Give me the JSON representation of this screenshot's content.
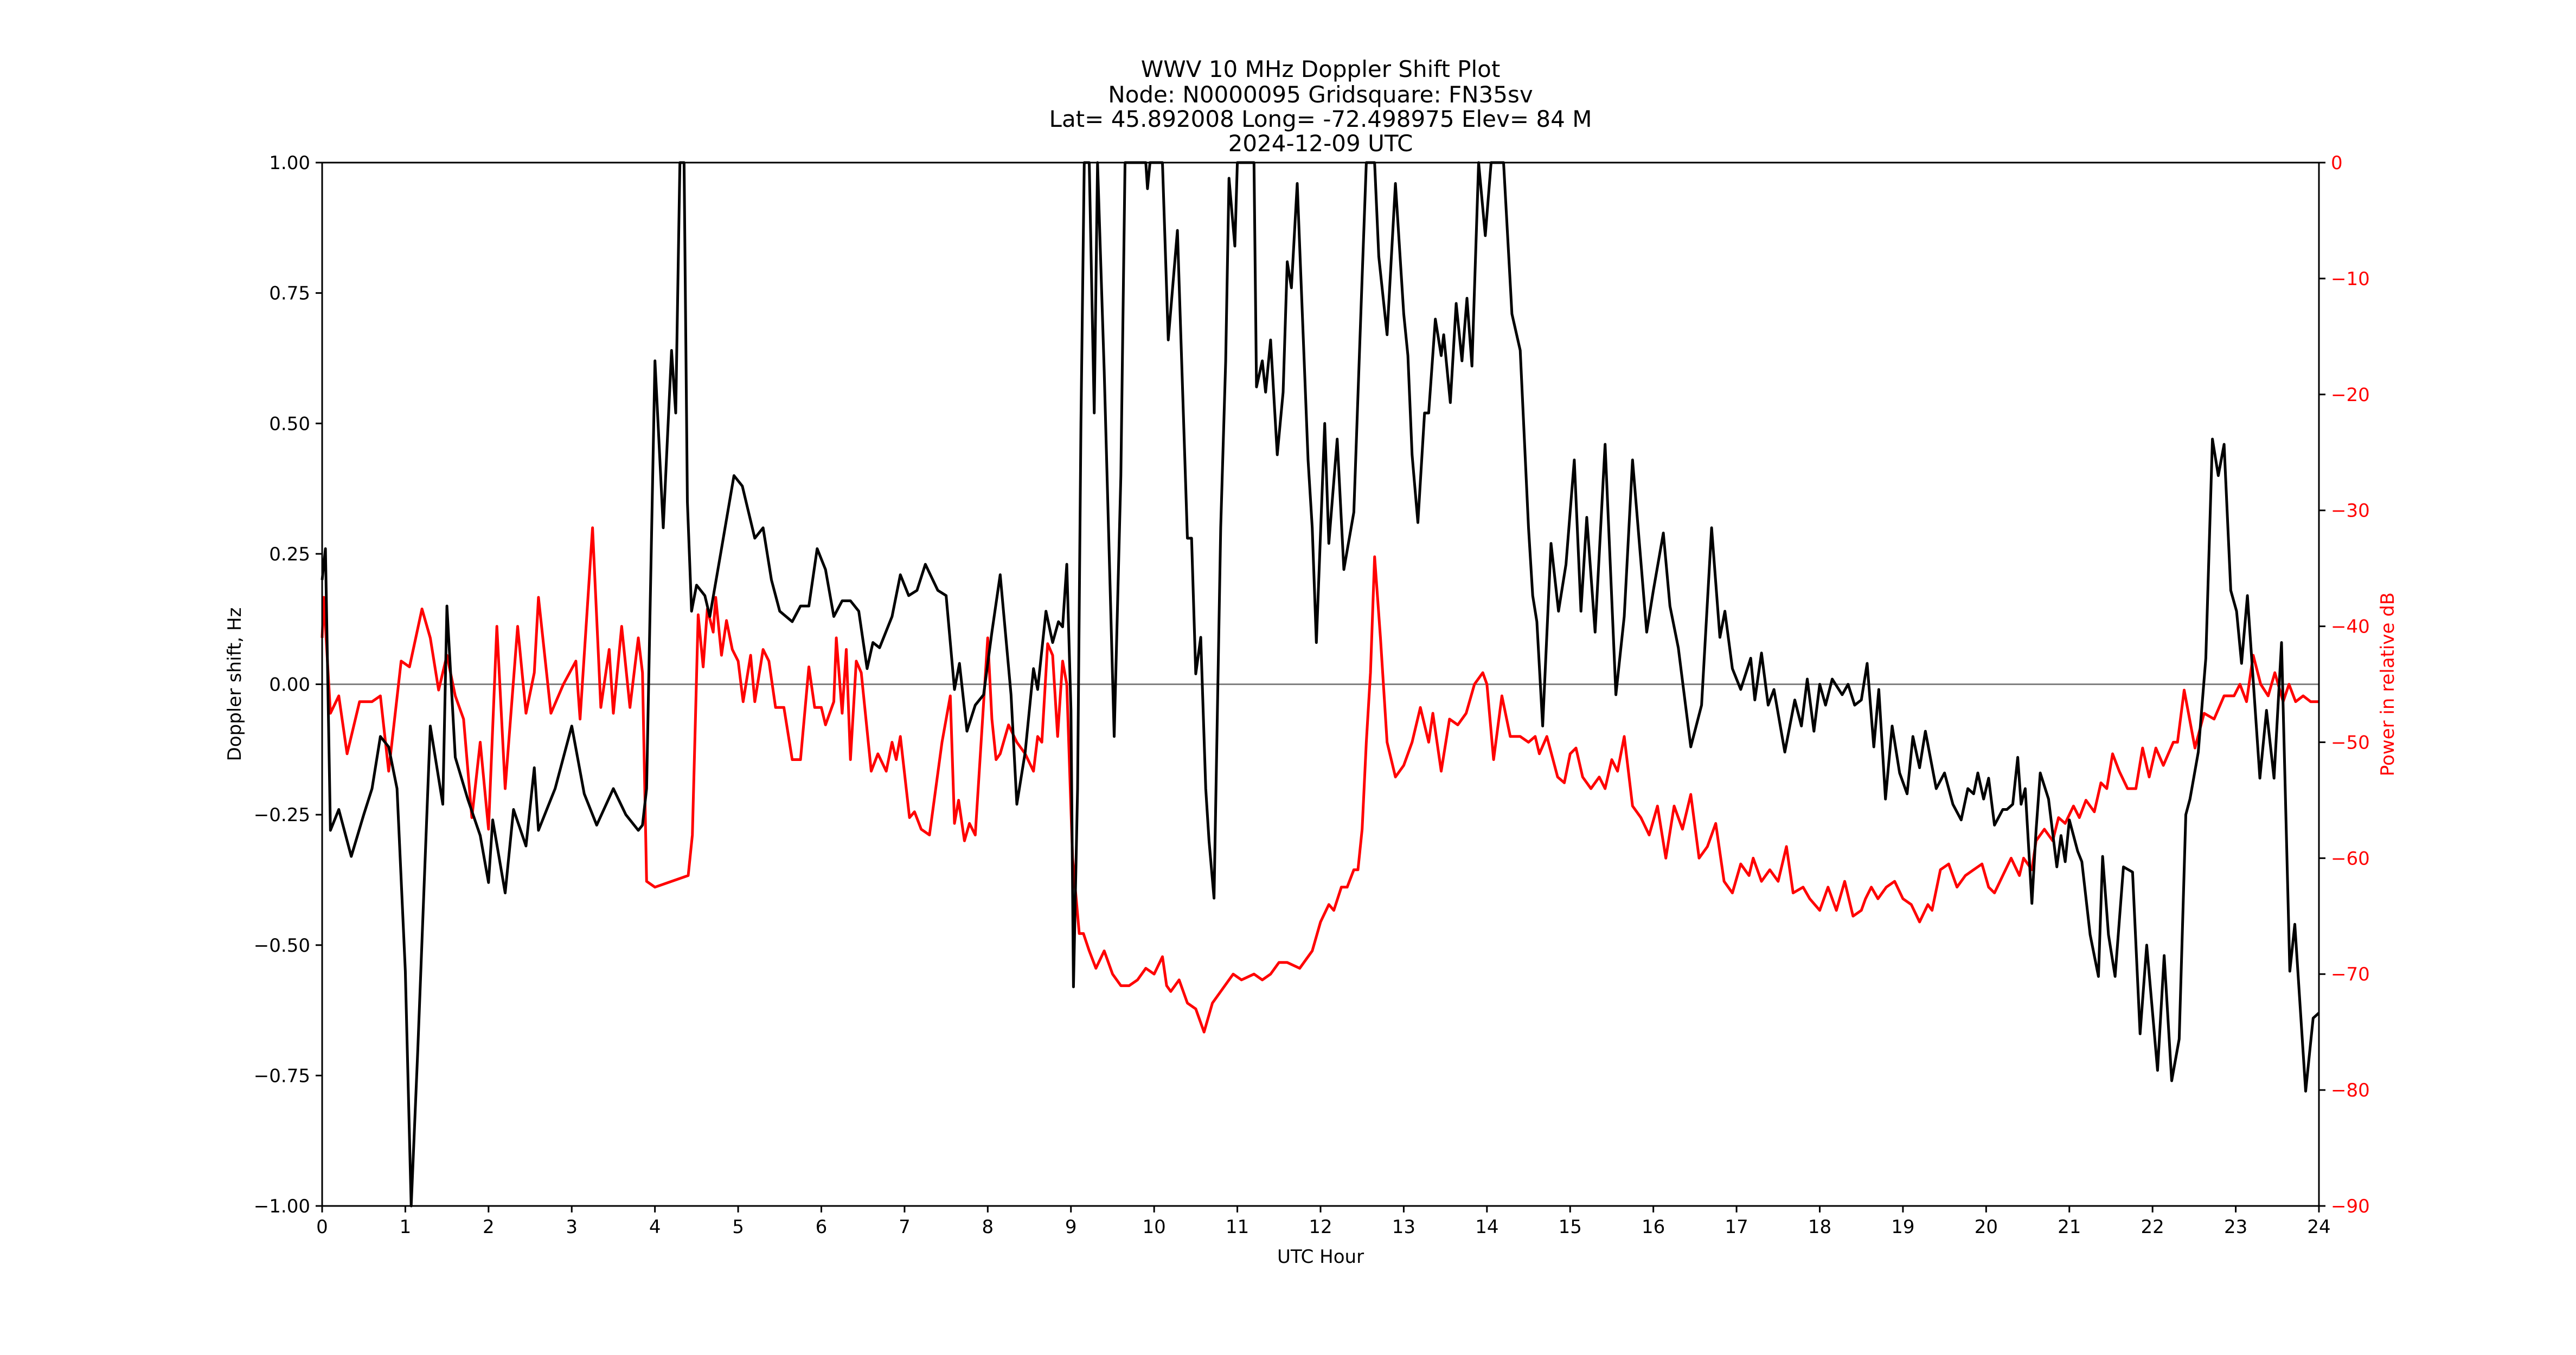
{
  "figure": {
    "title_lines": [
      "WWV 10 MHz Doppler Shift Plot",
      "Node:  N0000095     Gridsquare:  FN35sv",
      "Lat= 45.892008    Long= -72.498975    Elev= 84 M",
      "2024-12-09  UTC"
    ],
    "xlabel": "UTC Hour",
    "ylabel_left": "Doppler shift, Hz",
    "ylabel_right": "Power in relative dB",
    "x_ticks": [
      "0",
      "1",
      "2",
      "3",
      "4",
      "5",
      "6",
      "7",
      "8",
      "9",
      "10",
      "11",
      "12",
      "13",
      "14",
      "15",
      "16",
      "17",
      "18",
      "19",
      "20",
      "21",
      "22",
      "23",
      "24"
    ],
    "y_left_ticks": [
      "1.00",
      "0.75",
      "0.50",
      "0.25",
      "0.00",
      "−0.25",
      "−0.50",
      "−0.75",
      "−1.00"
    ],
    "y_right_ticks": [
      "0",
      "−10",
      "−20",
      "−30",
      "−40",
      "−50",
      "−60",
      "−70",
      "−80",
      "−90"
    ],
    "colors": {
      "doppler": "#000000",
      "power": "#ff0000",
      "zero_line": "#808080",
      "right_axis_text": "#ff0000"
    }
  },
  "chart_data": {
    "type": "line",
    "title": "WWV 10 MHz Doppler Shift Plot",
    "subtitle": "Node: N0000095  Gridsquare: FN35sv  Lat= 45.892008  Long= -72.498975  Elev= 84 M  2024-12-09 UTC",
    "xlabel": "UTC Hour",
    "ylabel": "Doppler shift, Hz",
    "ylabel_right": "Power in relative dB",
    "xlim": [
      0,
      24
    ],
    "ylim": [
      -1.0,
      1.0
    ],
    "ylim_right": [
      -90,
      0
    ],
    "grid": false,
    "legend": null,
    "reference_line": {
      "y": 0.0,
      "color": "#808080"
    },
    "series": [
      {
        "name": "Doppler shift, Hz",
        "axis": "left",
        "color": "#000000",
        "x": [
          0.0,
          0.04,
          0.1,
          0.2,
          0.35,
          0.5,
          0.6,
          0.7,
          0.8,
          0.9,
          1.0,
          1.07,
          1.15,
          1.3,
          1.45,
          1.5,
          1.6,
          1.75,
          1.9,
          2.0,
          2.05,
          2.2,
          2.3,
          2.45,
          2.55,
          2.6,
          2.8,
          3.0,
          3.15,
          3.3,
          3.5,
          3.65,
          3.8,
          3.85,
          3.9,
          4.0,
          4.1,
          4.2,
          4.25,
          4.3,
          4.35,
          4.39,
          4.44,
          4.5,
          4.6,
          4.66,
          4.8,
          4.95,
          5.05,
          5.2,
          5.3,
          5.4,
          5.5,
          5.65,
          5.75,
          5.85,
          5.95,
          6.05,
          6.15,
          6.25,
          6.35,
          6.45,
          6.55,
          6.62,
          6.7,
          6.85,
          6.95,
          7.05,
          7.15,
          7.25,
          7.4,
          7.5,
          7.6,
          7.66,
          7.75,
          7.85,
          7.95,
          8.05,
          8.15,
          8.28,
          8.35,
          8.45,
          8.55,
          8.6,
          8.7,
          8.78,
          8.85,
          8.9,
          8.95,
          9.0,
          9.03,
          9.08,
          9.12,
          9.16,
          9.22,
          9.28,
          9.32,
          9.4,
          9.46,
          9.52,
          9.6,
          9.65,
          9.9,
          9.92,
          9.95,
          10.1,
          10.17,
          10.28,
          10.4,
          10.45,
          10.5,
          10.56,
          10.62,
          10.66,
          10.72,
          10.8,
          10.86,
          10.9,
          10.97,
          11.0,
          11.2,
          11.23,
          11.3,
          11.34,
          11.4,
          11.48,
          11.55,
          11.6,
          11.65,
          11.72,
          11.85,
          11.9,
          11.95,
          12.05,
          12.1,
          12.2,
          12.28,
          12.4,
          12.5,
          12.55,
          12.65,
          12.7,
          12.8,
          12.9,
          13.0,
          13.05,
          13.1,
          13.17,
          13.25,
          13.3,
          13.38,
          13.45,
          13.48,
          13.56,
          13.63,
          13.7,
          13.76,
          13.82,
          13.9,
          13.98,
          14.05,
          14.2,
          14.3,
          14.4,
          14.5,
          14.55,
          14.6,
          14.67,
          14.77,
          14.86,
          14.95,
          15.05,
          15.13,
          15.2,
          15.3,
          15.42,
          15.55,
          15.65,
          15.75,
          15.92,
          16.0,
          16.12,
          16.2,
          16.3,
          16.45,
          16.58,
          16.7,
          16.8,
          16.86,
          16.95,
          17.05,
          17.17,
          17.22,
          17.3,
          17.38,
          17.45,
          17.58,
          17.7,
          17.78,
          17.85,
          17.93,
          18.0,
          18.07,
          18.15,
          18.27,
          18.34,
          18.42,
          18.5,
          18.57,
          18.65,
          18.71,
          18.79,
          18.87,
          18.96,
          19.05,
          19.12,
          19.2,
          19.27,
          19.4,
          19.5,
          19.6,
          19.7,
          19.78,
          19.85,
          19.9,
          19.97,
          20.03,
          20.1,
          20.2,
          20.25,
          20.32,
          20.38,
          20.42,
          20.47,
          20.55,
          20.6,
          20.65,
          20.75,
          20.85,
          20.9,
          20.95,
          21.0,
          21.1,
          21.15,
          21.25,
          21.35,
          21.4,
          21.47,
          21.55,
          21.65,
          21.76,
          21.85,
          21.93,
          22.06,
          22.14,
          22.23,
          22.32,
          22.4,
          22.45,
          22.55,
          22.64,
          22.72,
          22.79,
          22.86,
          22.94,
          23.01,
          23.07,
          23.14,
          23.29,
          23.37,
          23.46,
          23.55,
          23.65,
          23.71,
          23.84,
          23.93,
          24.0
        ],
        "values": [
          0.2,
          0.26,
          -0.28,
          -0.24,
          -0.33,
          -0.25,
          -0.2,
          -0.1,
          -0.12,
          -0.2,
          -0.55,
          -1.0,
          -0.7,
          -0.08,
          -0.23,
          0.15,
          -0.14,
          -0.22,
          -0.29,
          -0.38,
          -0.26,
          -0.4,
          -0.24,
          -0.31,
          -0.16,
          -0.28,
          -0.2,
          -0.08,
          -0.21,
          -0.27,
          -0.2,
          -0.25,
          -0.28,
          -0.27,
          -0.2,
          0.62,
          0.3,
          0.64,
          0.52,
          1.0,
          1.0,
          0.35,
          0.14,
          0.19,
          0.17,
          0.13,
          0.26,
          0.4,
          0.38,
          0.28,
          0.3,
          0.2,
          0.14,
          0.12,
          0.15,
          0.15,
          0.26,
          0.22,
          0.13,
          0.16,
          0.16,
          0.14,
          0.03,
          0.08,
          0.07,
          0.13,
          0.21,
          0.17,
          0.18,
          0.23,
          0.18,
          0.17,
          -0.01,
          0.04,
          -0.09,
          -0.04,
          -0.02,
          0.1,
          0.21,
          -0.02,
          -0.23,
          -0.13,
          0.03,
          -0.01,
          0.14,
          0.08,
          0.12,
          0.11,
          0.23,
          -0.05,
          -0.58,
          -0.2,
          0.5,
          1.0,
          1.0,
          0.52,
          1.0,
          0.6,
          0.25,
          -0.1,
          0.4,
          1.0,
          1.0,
          0.95,
          1.0,
          1.0,
          0.66,
          0.87,
          0.28,
          0.28,
          0.02,
          0.09,
          -0.2,
          -0.3,
          -0.41,
          0.3,
          0.62,
          0.97,
          0.84,
          1.0,
          1.0,
          0.57,
          0.62,
          0.56,
          0.66,
          0.44,
          0.56,
          0.81,
          0.76,
          0.96,
          0.43,
          0.3,
          0.08,
          0.5,
          0.27,
          0.47,
          0.22,
          0.33,
          0.78,
          1.0,
          1.0,
          0.82,
          0.67,
          0.96,
          0.71,
          0.63,
          0.44,
          0.31,
          0.52,
          0.52,
          0.7,
          0.63,
          0.67,
          0.54,
          0.73,
          0.62,
          0.74,
          0.61,
          1.0,
          0.86,
          1.0,
          1.0,
          0.71,
          0.64,
          0.3,
          0.17,
          0.12,
          -0.08,
          0.27,
          0.14,
          0.23,
          0.43,
          0.14,
          0.32,
          0.1,
          0.46,
          -0.02,
          0.13,
          0.43,
          0.1,
          0.18,
          0.29,
          0.15,
          0.07,
          -0.12,
          -0.04,
          0.3,
          0.09,
          0.14,
          0.03,
          -0.01,
          0.05,
          -0.03,
          0.06,
          -0.04,
          -0.01,
          -0.13,
          -0.03,
          -0.08,
          0.01,
          -0.09,
          0.0,
          -0.04,
          0.01,
          -0.02,
          0.0,
          -0.04,
          -0.03,
          0.04,
          -0.12,
          -0.01,
          -0.22,
          -0.08,
          -0.17,
          -0.21,
          -0.1,
          -0.16,
          -0.09,
          -0.2,
          -0.17,
          -0.23,
          -0.26,
          -0.2,
          -0.21,
          -0.17,
          -0.22,
          -0.18,
          -0.27,
          -0.24,
          -0.24,
          -0.23,
          -0.14,
          -0.23,
          -0.2,
          -0.42,
          -0.28,
          -0.17,
          -0.22,
          -0.35,
          -0.29,
          -0.34,
          -0.26,
          -0.32,
          -0.34,
          -0.48,
          -0.56,
          -0.33,
          -0.48,
          -0.56,
          -0.35,
          -0.36,
          -0.67,
          -0.5,
          -0.74,
          -0.52,
          -0.76,
          -0.68,
          -0.25,
          -0.22,
          -0.13,
          0.05,
          0.47,
          0.4,
          0.46,
          0.18,
          0.14,
          0.04,
          0.17,
          -0.18,
          -0.05,
          -0.18,
          0.08,
          -0.55,
          -0.46,
          -0.78,
          -0.64,
          -0.63
        ]
      },
      {
        "name": "Power in relative dB",
        "axis": "right",
        "color": "#ff0000",
        "x": [
          0.0,
          0.02,
          0.1,
          0.2,
          0.3,
          0.45,
          0.6,
          0.7,
          0.8,
          0.95,
          1.05,
          1.2,
          1.3,
          1.4,
          1.5,
          1.6,
          1.7,
          1.8,
          1.9,
          2.0,
          2.1,
          2.2,
          2.35,
          2.45,
          2.55,
          2.6,
          2.75,
          2.9,
          3.05,
          3.1,
          3.25,
          3.35,
          3.45,
          3.5,
          3.6,
          3.7,
          3.8,
          3.85,
          3.9,
          4.0,
          4.2,
          4.4,
          4.45,
          4.52,
          4.58,
          4.63,
          4.7,
          4.73,
          4.8,
          4.86,
          4.93,
          5.0,
          5.06,
          5.15,
          5.2,
          5.3,
          5.37,
          5.45,
          5.55,
          5.65,
          5.75,
          5.85,
          5.92,
          6.0,
          6.05,
          6.15,
          6.18,
          6.25,
          6.3,
          6.35,
          6.42,
          6.48,
          6.6,
          6.68,
          6.78,
          6.85,
          6.9,
          6.95,
          7.06,
          7.12,
          7.2,
          7.3,
          7.45,
          7.55,
          7.6,
          7.65,
          7.72,
          7.78,
          7.85,
          8.0,
          8.05,
          8.1,
          8.15,
          8.25,
          8.35,
          8.45,
          8.55,
          8.6,
          8.65,
          8.72,
          8.78,
          8.84,
          8.9,
          8.95,
          9.02,
          9.1,
          9.15,
          9.22,
          9.3,
          9.4,
          9.5,
          9.6,
          9.7,
          9.8,
          9.9,
          10.0,
          10.1,
          10.15,
          10.2,
          10.3,
          10.4,
          10.5,
          10.6,
          10.7,
          10.8,
          10.95,
          11.05,
          11.2,
          11.3,
          11.4,
          11.5,
          11.6,
          11.75,
          11.9,
          12.0,
          12.1,
          12.16,
          12.25,
          12.32,
          12.4,
          12.45,
          12.5,
          12.55,
          12.6,
          12.65,
          12.72,
          12.8,
          12.9,
          13.0,
          13.1,
          13.2,
          13.3,
          13.35,
          13.45,
          13.55,
          13.65,
          13.75,
          13.85,
          13.95,
          14.0,
          14.08,
          14.18,
          14.28,
          14.4,
          14.5,
          14.58,
          14.63,
          14.72,
          14.85,
          14.93,
          15.0,
          15.07,
          15.15,
          15.25,
          15.35,
          15.42,
          15.5,
          15.57,
          15.65,
          15.75,
          15.85,
          15.95,
          16.05,
          16.15,
          16.25,
          16.35,
          16.45,
          16.55,
          16.65,
          16.75,
          16.85,
          16.95,
          17.05,
          17.15,
          17.2,
          17.3,
          17.4,
          17.5,
          17.6,
          17.68,
          17.8,
          17.88,
          18.0,
          18.1,
          18.2,
          18.3,
          18.4,
          18.5,
          18.55,
          18.62,
          18.7,
          18.8,
          18.9,
          19.0,
          19.1,
          19.2,
          19.3,
          19.35,
          19.45,
          19.55,
          19.65,
          19.75,
          19.85,
          19.95,
          20.03,
          20.1,
          20.2,
          20.3,
          20.4,
          20.45,
          20.55,
          20.6,
          20.7,
          20.8,
          20.87,
          20.95,
          21.05,
          21.12,
          21.2,
          21.3,
          21.38,
          21.45,
          21.52,
          21.6,
          21.7,
          21.8,
          21.88,
          21.96,
          22.04,
          22.13,
          22.25,
          22.3,
          22.38,
          22.51,
          22.62,
          22.74,
          22.86,
          22.98,
          23.05,
          23.13,
          23.21,
          23.3,
          23.39,
          23.47,
          23.57,
          23.64,
          23.72,
          23.81,
          23.9,
          24.0
        ],
        "values": [
          -41,
          -37.5,
          -47.5,
          -46,
          -51,
          -46.5,
          -46.5,
          -46,
          -52.5,
          -43,
          -43.5,
          -38.5,
          -41,
          -45.5,
          -42.5,
          -46,
          -48,
          -56.5,
          -50,
          -57.5,
          -40,
          -54,
          -40,
          -47.5,
          -44,
          -37.5,
          -47.5,
          -45,
          -43,
          -48,
          -31.5,
          -47,
          -42,
          -47.5,
          -40,
          -47,
          -41,
          -44,
          -62,
          -62.5,
          -62,
          -61.5,
          -58,
          -39,
          -43.5,
          -38.5,
          -40.5,
          -37.5,
          -42.5,
          -39.5,
          -42,
          -43,
          -46.5,
          -42.5,
          -46.5,
          -42,
          -43,
          -47,
          -47,
          -51.5,
          -51.5,
          -43.5,
          -47,
          -47,
          -48.5,
          -46.5,
          -41,
          -47.5,
          -42,
          -51.5,
          -43,
          -44,
          -52.5,
          -51,
          -52.5,
          -50,
          -51.5,
          -49.5,
          -56.5,
          -56,
          -57.5,
          -58,
          -50,
          -46,
          -57,
          -55,
          -58.5,
          -57,
          -58,
          -41,
          -48,
          -51.5,
          -51,
          -48.5,
          -50,
          -51,
          -52.5,
          -49.5,
          -50,
          -41.5,
          -42.5,
          -49.5,
          -43,
          -45,
          -60,
          -66.5,
          -66.5,
          -68,
          -69.5,
          -68,
          -70,
          -71,
          -71,
          -70.5,
          -69.5,
          -70,
          -68.5,
          -71,
          -71.5,
          -70.5,
          -72.5,
          -73,
          -75,
          -72.5,
          -71.5,
          -70,
          -70.5,
          -70,
          -70.5,
          -70,
          -69,
          -69,
          -69.5,
          -68,
          -65.5,
          -64,
          -64.5,
          -62.5,
          -62.5,
          -61,
          -61,
          -57.5,
          -50,
          -44,
          -34,
          -41,
          -50,
          -53,
          -52,
          -50,
          -47,
          -50,
          -47.5,
          -52.5,
          -48,
          -48.5,
          -47.5,
          -45,
          -44,
          -45,
          -51.5,
          -46,
          -49.5,
          -49.5,
          -50,
          -49.5,
          -51,
          -49.5,
          -53,
          -53.5,
          -51,
          -50.5,
          -53,
          -54,
          -53,
          -54,
          -51.5,
          -52.5,
          -49.5,
          -55.5,
          -56.5,
          -58,
          -55.5,
          -60,
          -55.5,
          -57.5,
          -54.5,
          -60,
          -59,
          -57,
          -62,
          -63,
          -60.5,
          -61.5,
          -60,
          -62,
          -61,
          -62,
          -59,
          -63,
          -62.5,
          -63.5,
          -64.5,
          -62.5,
          -64.5,
          -62,
          -65,
          -64.5,
          -63.5,
          -62.5,
          -63.5,
          -62.5,
          -62,
          -63.5,
          -64,
          -65.5,
          -64,
          -64.5,
          -61,
          -60.5,
          -62.5,
          -61.5,
          -61,
          -60.5,
          -62.5,
          -63,
          -61.5,
          -60,
          -61.5,
          -60,
          -61,
          -58.5,
          -57.5,
          -58.5,
          -56.5,
          -57,
          -55.5,
          -56.5,
          -55,
          -56,
          -53.5,
          -54,
          -51,
          -52.5,
          -54,
          -54,
          -50.5,
          -53,
          -50.5,
          -52,
          -50,
          -50,
          -45.5,
          -50.5,
          -47.5,
          -48,
          -46,
          -46,
          -45,
          -46.5,
          -42.5,
          -45,
          -46,
          -44,
          -46.5,
          -45,
          -46.5,
          -46,
          -46.5,
          -46.5
        ]
      }
    ]
  }
}
